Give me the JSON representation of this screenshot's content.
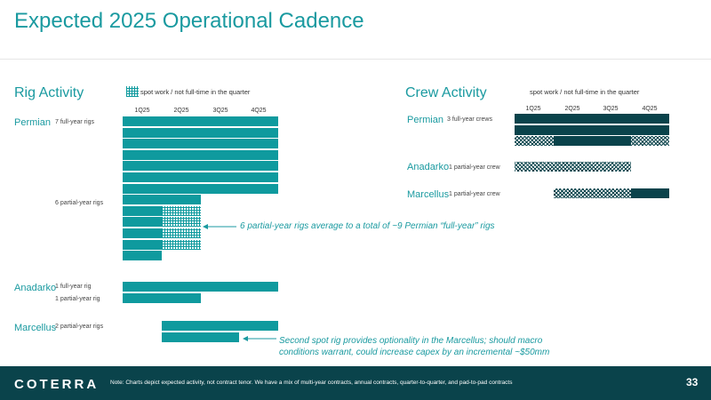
{
  "page_title": "Expected 2025 Operational Cadence",
  "quarters": [
    "1Q25",
    "2Q25",
    "3Q25",
    "4Q25"
  ],
  "rig_activity": {
    "title": "Rig Activity",
    "legend_label": "spot work / not full-time in the quarter",
    "permian": {
      "label": "Permian",
      "full_year_label": "7 full-year rigs",
      "partial_year_label": "6 partial-year rigs"
    },
    "anadarko": {
      "label": "Anadarko",
      "full_year_label": "1 full-year rig",
      "partial_year_label": "1 partial-year rig"
    },
    "marcellus": {
      "label": "Marcellus",
      "partial_year_label": "2 partial-year rigs"
    },
    "rows": [
      {
        "group": "permian",
        "segments": [
          {
            "from": 0,
            "to": 4,
            "style": "full"
          }
        ]
      },
      {
        "group": "permian",
        "segments": [
          {
            "from": 0,
            "to": 4,
            "style": "full"
          }
        ]
      },
      {
        "group": "permian",
        "segments": [
          {
            "from": 0,
            "to": 4,
            "style": "full"
          }
        ]
      },
      {
        "group": "permian",
        "segments": [
          {
            "from": 0,
            "to": 4,
            "style": "full"
          }
        ]
      },
      {
        "group": "permian",
        "segments": [
          {
            "from": 0,
            "to": 4,
            "style": "full"
          }
        ]
      },
      {
        "group": "permian",
        "segments": [
          {
            "from": 0,
            "to": 4,
            "style": "full"
          }
        ]
      },
      {
        "group": "permian",
        "segments": [
          {
            "from": 0,
            "to": 4,
            "style": "full"
          }
        ]
      },
      {
        "group": "permian",
        "segments": [
          {
            "from": 0,
            "to": 2,
            "style": "full"
          }
        ]
      },
      {
        "group": "permian",
        "segments": [
          {
            "from": 0,
            "to": 1,
            "style": "full"
          },
          {
            "from": 1,
            "to": 2,
            "style": "spot"
          }
        ]
      },
      {
        "group": "permian",
        "segments": [
          {
            "from": 0,
            "to": 1,
            "style": "full"
          },
          {
            "from": 1,
            "to": 2,
            "style": "spot"
          }
        ]
      },
      {
        "group": "permian",
        "segments": [
          {
            "from": 0,
            "to": 1,
            "style": "full"
          },
          {
            "from": 1,
            "to": 2,
            "style": "spot"
          }
        ]
      },
      {
        "group": "permian",
        "segments": [
          {
            "from": 0,
            "to": 1,
            "style": "full"
          },
          {
            "from": 1,
            "to": 2,
            "style": "spot"
          }
        ]
      },
      {
        "group": "permian",
        "segments": [
          {
            "from": 0,
            "to": 1,
            "style": "full"
          }
        ]
      },
      {
        "group": "anadarko",
        "segments": [
          {
            "from": 0,
            "to": 4,
            "style": "full"
          }
        ]
      },
      {
        "group": "anadarko",
        "segments": [
          {
            "from": 0,
            "to": 2,
            "style": "full"
          }
        ]
      },
      {
        "group": "marcellus",
        "segments": [
          {
            "from": 1,
            "to": 4,
            "style": "full"
          }
        ]
      },
      {
        "group": "marcellus",
        "segments": [
          {
            "from": 1,
            "to": 3,
            "style": "full"
          }
        ]
      }
    ],
    "permian_callout": "6 partial-year rigs average to a total of ~9 Permian “full-year” rigs",
    "marcellus_callout_line1": "Second spot rig provides optionality in the Marcellus; should macro",
    "marcellus_callout_line2": "conditions warrant, could increase capex by an incremental ~$50mm"
  },
  "crew_activity": {
    "title": "Crew Activity",
    "legend_label": "spot work / not full-time in the quarter",
    "permian": {
      "label": "Permian",
      "sub_label": "3 full-year crews"
    },
    "anadarko": {
      "label": "Anadarko",
      "sub_label": "1 partial-year crew"
    },
    "marcellus": {
      "label": "Marcellus",
      "sub_label": "1 partial-year crew"
    },
    "rows": [
      {
        "group": "permian",
        "segments": [
          {
            "from": 0,
            "to": 4,
            "style": "full"
          }
        ]
      },
      {
        "group": "permian",
        "segments": [
          {
            "from": 0,
            "to": 4,
            "style": "full"
          }
        ]
      },
      {
        "group": "permian",
        "segments": [
          {
            "from": 0,
            "to": 1,
            "style": "spot"
          },
          {
            "from": 1,
            "to": 3,
            "style": "full"
          },
          {
            "from": 3,
            "to": 4,
            "style": "spot"
          }
        ]
      },
      {
        "group": "anadarko",
        "segments": [
          {
            "from": 0,
            "to": 3,
            "style": "spot"
          }
        ]
      },
      {
        "group": "marcellus",
        "segments": [
          {
            "from": 1,
            "to": 3,
            "style": "spot"
          },
          {
            "from": 3,
            "to": 4,
            "style": "full"
          }
        ]
      }
    ]
  },
  "footer": {
    "logo": "COTERRA",
    "note": "Note: Charts depict expected activity, not contract tenor. We have a mix of multi-year contracts, annual contracts, quarter-to-quarter, and pad-to-pad contracts",
    "page_number": "33"
  },
  "colors": {
    "title": "#1a9aa0",
    "rig_bar": "#0f9a9e",
    "crew_bar": "#0a434b",
    "footer_bg": "#0a434b"
  }
}
